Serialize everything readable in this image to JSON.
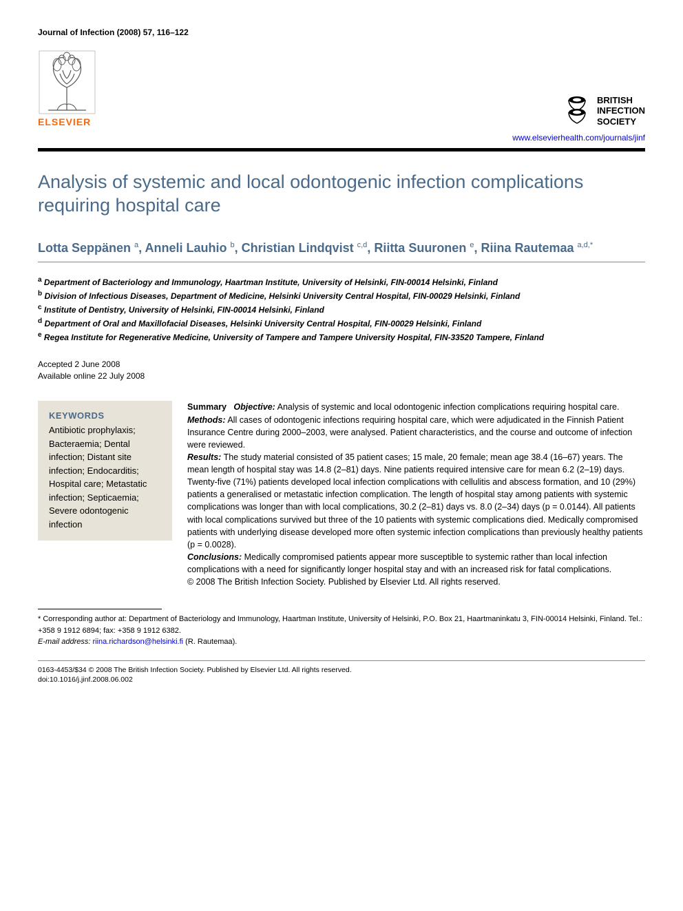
{
  "journal_line": "Journal of Infection (2008) 57, 116–122",
  "publisher": {
    "name": "ELSEVIER",
    "tree_stroke": "#555555",
    "text_color": "#ff6600"
  },
  "society": {
    "line1": "BRITISH",
    "line2": "INFECTION",
    "line3": "SOCIETY"
  },
  "url": "www.elsevierhealth.com/journals/jinf",
  "title": "Analysis of systemic and local odontogenic infection complications requiring hospital care",
  "authors_html": "Lotta Seppänen <sup>a</sup>, Anneli Lauhio <sup>b</sup>, Christian Lindqvist <sup>c,d</sup>, Riitta Suuronen <sup>e</sup>, Riina Rautemaa <sup>a,d,*</sup>",
  "affiliations": {
    "a": "Department of Bacteriology and Immunology, Haartman Institute, University of Helsinki, FIN-00014 Helsinki, Finland",
    "b": "Division of Infectious Diseases, Department of Medicine, Helsinki University Central Hospital, FIN-00029 Helsinki, Finland",
    "c": "Institute of Dentistry, University of Helsinki, FIN-00014 Helsinki, Finland",
    "d": "Department of Oral and Maxillofacial Diseases, Helsinki University Central Hospital, FIN-00029 Helsinki, Finland",
    "e": "Regea Institute for Regenerative Medicine, University of Tampere and Tampere University Hospital, FIN-33520 Tampere, Finland"
  },
  "dates": {
    "accepted": "Accepted 2 June 2008",
    "online": "Available online 22 July 2008"
  },
  "keywords": {
    "heading": "KEYWORDS",
    "list": "Antibiotic prophylaxis; Bacteraemia; Dental infection; Distant site infection; Endocarditis; Hospital care; Metastatic infection; Septicaemia; Severe odontogenic infection"
  },
  "abstract": {
    "summary_label": "Summary",
    "objective_label": "Objective:",
    "objective": " Analysis of systemic and local odontogenic infection complications requiring hospital care.",
    "methods_label": "Methods:",
    "methods": " All cases of odontogenic infections requiring hospital care, which were adjudicated in the Finnish Patient Insurance Centre during 2000–2003, were analysed. Patient characteristics, and the course and outcome of infection were reviewed.",
    "results_label": "Results:",
    "results": " The study material consisted of 35 patient cases; 15 male, 20 female; mean age 38.4 (16–67) years. The mean length of hospital stay was 14.8 (2–81) days. Nine patients required intensive care for mean 6.2 (2–19) days. Twenty-five (71%) patients developed local infection complications with cellulitis and abscess formation, and 10 (29%) patients a generalised or metastatic infection complication. The length of hospital stay among patients with systemic complications was longer than with local complications, 30.2 (2–81) days vs. 8.0 (2–34) days (p = 0.0144). All patients with local complications survived but three of the 10 patients with systemic complications died. Medically compromised patients with underlying disease developed more often systemic infection complications than previously healthy patients (p = 0.0028).",
    "conclusions_label": "Conclusions:",
    "conclusions": " Medically compromised patients appear more susceptible to systemic rather than local infection complications with a need for significantly longer hospital stay and with an increased risk for fatal complications.",
    "copyright": "© 2008 The British Infection Society. Published by Elsevier Ltd. All rights reserved."
  },
  "footnotes": {
    "corr": "* Corresponding author at: Department of Bacteriology and Immunology, Haartman Institute, University of Helsinki, P.O. Box 21, Haartmaninkatu 3, FIN-00014 Helsinki, Finland. Tel.: +358 9 1912 6894; fax: +358 9 1912 6382.",
    "email_label": "E-mail address:",
    "email": "riina.richardson@helsinki.fi",
    "email_suffix": " (R. Rautemaa)."
  },
  "footer": {
    "line1": "0163-4453/$34 © 2008 The British Infection Society. Published by Elsevier Ltd. All rights reserved.",
    "line2": "doi:10.1016/j.jinf.2008.06.002"
  },
  "colors": {
    "heading": "#4a6a8a",
    "box_bg": "#e8e3d9",
    "link": "#0000cc"
  }
}
